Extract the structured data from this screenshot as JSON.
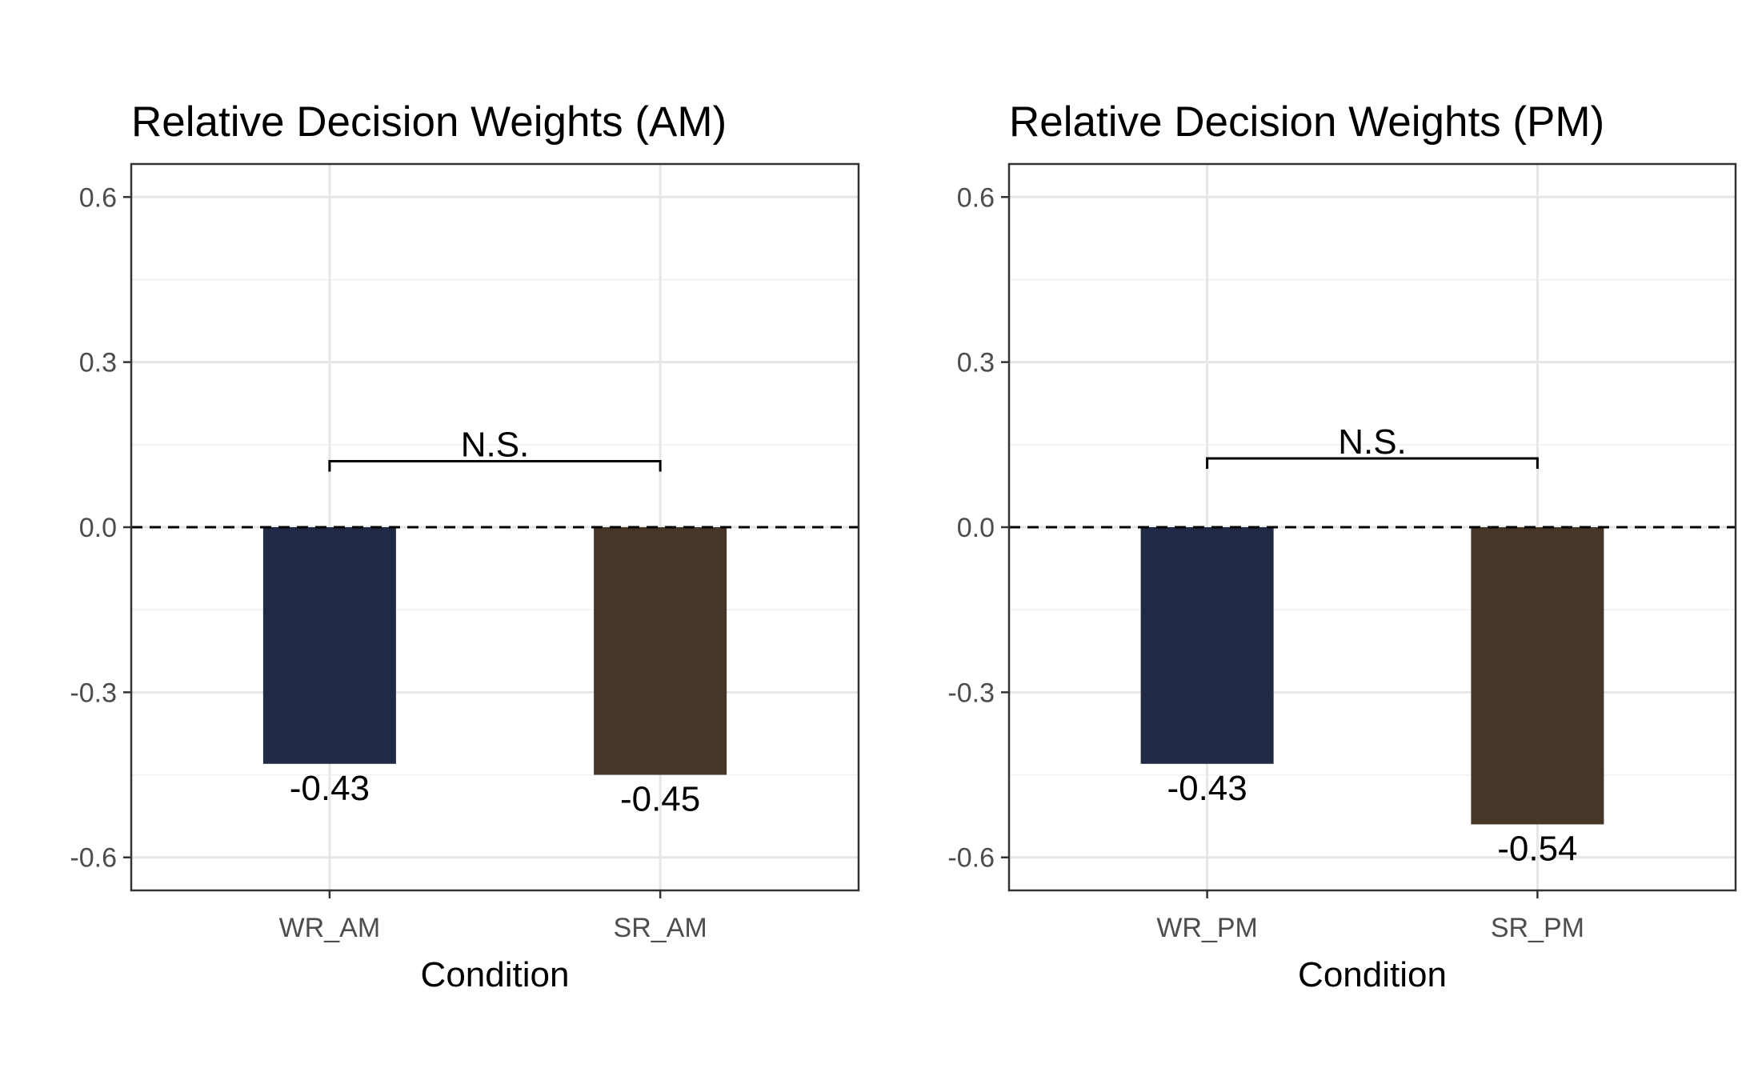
{
  "chart_data": [
    {
      "type": "bar",
      "title": "Relative Decision Weights (AM)",
      "xlabel": "Condition",
      "ylabel": "",
      "categories": [
        "WR_AM",
        "SR_AM"
      ],
      "values": [
        -0.43,
        -0.45
      ],
      "value_labels": [
        "-0.43",
        "-0.45"
      ],
      "colors": [
        "#212a44",
        "#463628"
      ],
      "ylim": [
        -0.66,
        0.66
      ],
      "yticks": [
        0.6,
        0.3,
        0.0,
        -0.3,
        -0.6
      ],
      "ytick_labels": [
        "0.6",
        "0.3",
        "0.0",
        "-0.3",
        "-0.6"
      ],
      "reference_line": 0.0,
      "significance": {
        "label": "N.S.",
        "y": 0.12
      },
      "grid": true,
      "legend": "none"
    },
    {
      "type": "bar",
      "title": "Relative Decision Weights (PM)",
      "xlabel": "Condition",
      "ylabel": "",
      "categories": [
        "WR_PM",
        "SR_PM"
      ],
      "values": [
        -0.43,
        -0.54
      ],
      "value_labels": [
        "-0.43",
        "-0.54"
      ],
      "colors": [
        "#212a44",
        "#463628"
      ],
      "ylim": [
        -0.66,
        0.66
      ],
      "yticks": [
        0.6,
        0.3,
        0.0,
        -0.3,
        -0.6
      ],
      "ytick_labels": [
        "0.6",
        "0.3",
        "0.0",
        "-0.3",
        "-0.6"
      ],
      "reference_line": 0.0,
      "significance": {
        "label": "N.S.",
        "y": 0.125
      },
      "grid": true,
      "legend": "none"
    }
  ]
}
